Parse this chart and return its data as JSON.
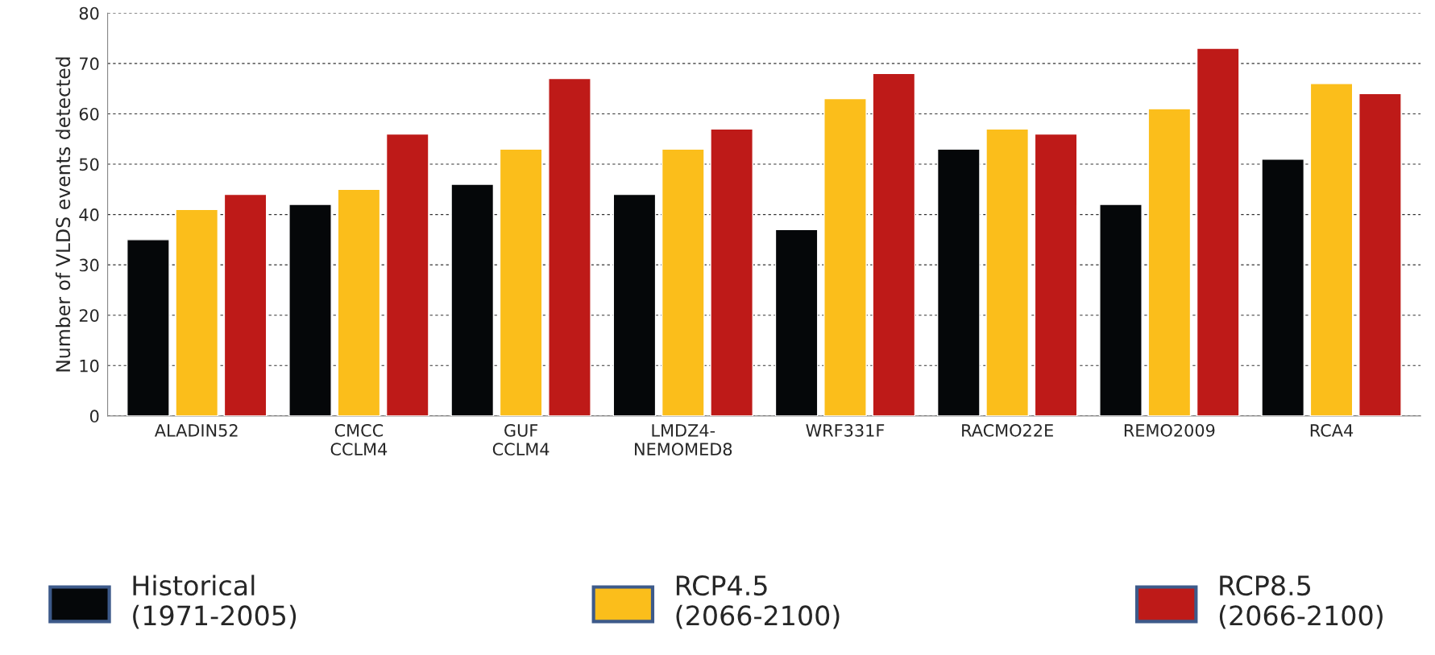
{
  "chart_data": {
    "type": "bar",
    "ylabel": "Number of VLDS events detected",
    "categories": [
      "ALADIN52",
      "CMCC\nCCLM4",
      "GUF\nCCLM4",
      "LMDZ4-\nNEMOMED8",
      "WRF331F",
      "RACMO22E",
      "REMO2009",
      "RCA4"
    ],
    "series": [
      {
        "name": "Historical\n(1971-2005)",
        "color": "#050709",
        "values": [
          35,
          42,
          46,
          44,
          37,
          53,
          42,
          51
        ]
      },
      {
        "name": "RCP4.5\n(2066-2100)",
        "color": "#fbbe1b",
        "values": [
          41,
          45,
          53,
          53,
          63,
          57,
          61,
          66
        ]
      },
      {
        "name": "RCP8.5\n(2066-2100)",
        "color": "#be1a18",
        "values": [
          44,
          56,
          67,
          57,
          68,
          56,
          73,
          64
        ]
      }
    ],
    "ylim": [
      0,
      80
    ],
    "yticks": [
      0,
      10,
      20,
      30,
      40,
      50,
      60,
      70,
      80
    ],
    "grid": "y",
    "legend": "bottom"
  }
}
